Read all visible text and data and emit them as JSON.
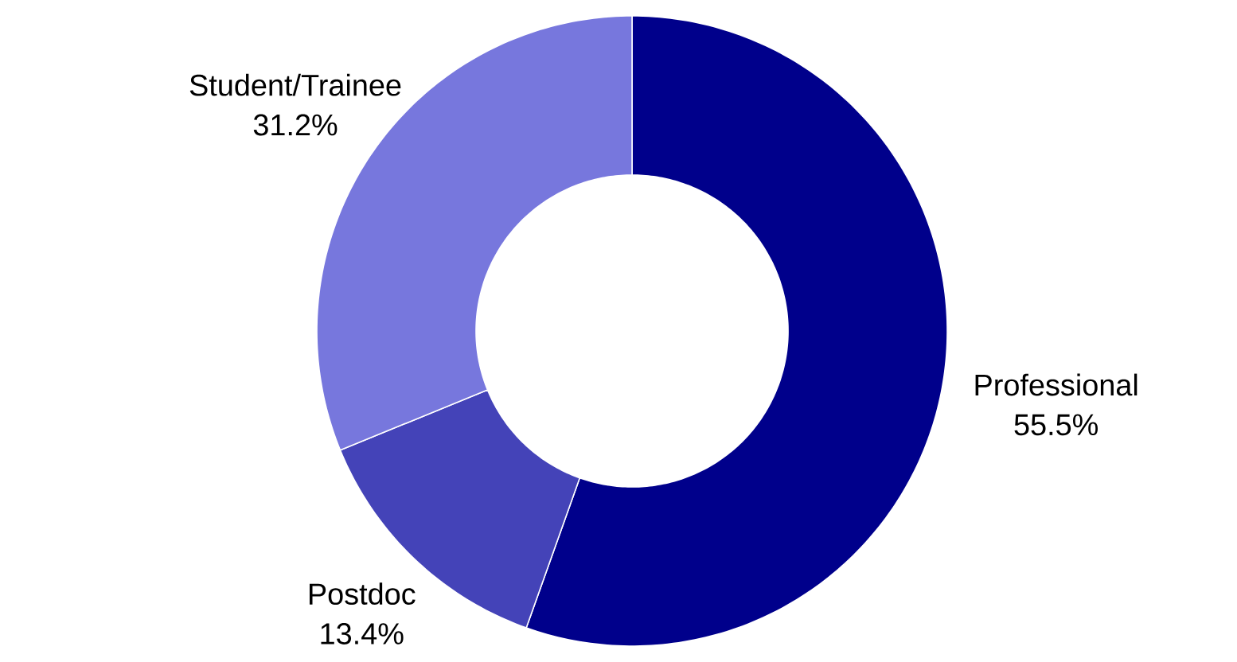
{
  "chart_data": {
    "type": "donut",
    "categories": [
      "Professional",
      "Postdoc",
      "Student/Trainee"
    ],
    "values": [
      55.5,
      13.4,
      31.2
    ],
    "value_labels": [
      "55.5%",
      "13.4%",
      "31.2%"
    ],
    "colors": [
      "#00008b",
      "#4443b8",
      "#7777dd"
    ]
  }
}
